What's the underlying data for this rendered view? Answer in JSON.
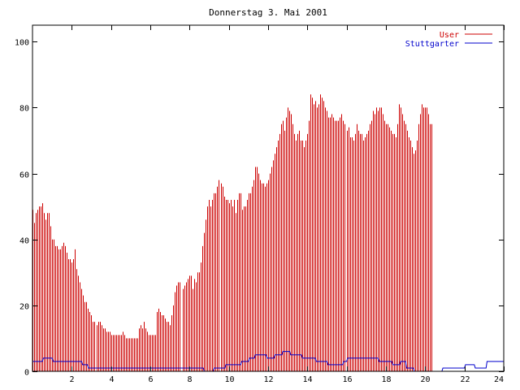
{
  "chart_data": {
    "type": "bar",
    "title": "Donnerstag 3. Mai 2001",
    "xlabel": "",
    "ylabel": "",
    "xlim": [
      0,
      24
    ],
    "ylim": [
      0,
      105
    ],
    "x_ticks": [
      2,
      4,
      6,
      8,
      10,
      12,
      14,
      16,
      18,
      20,
      22,
      24
    ],
    "y_ticks": [
      0,
      20,
      40,
      60,
      80,
      100
    ],
    "grid": false,
    "legend_position": "top-right",
    "sample_interval_hours": 0.0833,
    "series": [
      {
        "name": "User",
        "type": "bar",
        "color": "#cc0000",
        "x_start": 0,
        "x_step": 0.0833,
        "values": [
          49,
          45,
          48,
          49,
          50,
          50,
          51,
          48,
          46,
          48,
          48,
          44,
          40,
          40,
          38,
          38,
          37,
          37,
          38,
          39,
          38,
          36,
          34,
          34,
          33,
          34,
          37,
          31,
          29,
          27,
          25,
          23,
          21,
          21,
          19,
          18,
          17,
          15,
          15,
          14,
          15,
          15,
          14,
          13,
          13,
          12,
          12,
          12,
          11,
          11,
          11,
          11,
          11,
          11,
          11,
          12,
          11,
          10,
          10,
          10,
          10,
          10,
          10,
          10,
          10,
          13,
          14,
          13,
          15,
          13,
          12,
          11,
          11,
          11,
          11,
          11,
          18,
          19,
          18,
          17,
          17,
          16,
          15,
          15,
          14,
          17,
          20,
          24,
          26,
          27,
          27,
          0,
          25,
          26,
          27,
          28,
          29,
          29,
          25,
          28,
          27,
          30,
          30,
          33,
          38,
          42,
          46,
          50,
          52,
          50,
          52,
          54,
          54,
          56,
          58,
          57,
          56,
          53,
          52,
          52,
          51,
          52,
          50,
          52,
          48,
          52,
          54,
          54,
          49,
          50,
          50,
          52,
          54,
          54,
          56,
          58,
          62,
          62,
          60,
          58,
          57,
          57,
          56,
          57,
          58,
          60,
          62,
          64,
          66,
          68,
          70,
          72,
          75,
          76,
          73,
          77,
          80,
          79,
          78,
          75,
          72,
          70,
          72,
          73,
          70,
          70,
          68,
          70,
          72,
          76,
          84,
          83,
          81,
          82,
          80,
          81,
          84,
          83,
          82,
          80,
          79,
          77,
          77,
          78,
          77,
          76,
          76,
          76,
          77,
          78,
          76,
          75,
          73,
          74,
          71,
          71,
          70,
          72,
          75,
          73,
          72,
          72,
          70,
          71,
          72,
          73,
          75,
          76,
          79,
          78,
          80,
          79,
          80,
          80,
          78,
          76,
          75,
          75,
          74,
          73,
          72,
          72,
          71,
          75,
          81,
          80,
          78,
          76,
          75,
          73,
          71,
          70,
          68,
          66,
          67,
          70,
          75,
          78,
          81,
          80,
          80,
          80,
          78,
          75,
          75
        ]
      },
      {
        "name": "Stuttgarter",
        "type": "line",
        "color": "#0000cc",
        "segments": [
          [
            [
              0,
              3
            ],
            [
              0.5,
              3
            ],
            [
              0.55,
              4
            ],
            [
              1.0,
              4
            ],
            [
              1.05,
              3
            ],
            [
              2.5,
              3
            ],
            [
              2.55,
              2
            ],
            [
              2.8,
              2
            ],
            [
              2.85,
              1
            ],
            [
              8.7,
              1
            ],
            [
              8.75,
              0
            ],
            [
              9.2,
              0
            ],
            [
              9.25,
              1
            ],
            [
              9.8,
              1
            ],
            [
              9.85,
              2
            ],
            [
              10.6,
              2
            ],
            [
              10.65,
              3
            ],
            [
              11.0,
              3
            ],
            [
              11.05,
              4
            ],
            [
              11.3,
              4
            ],
            [
              11.35,
              5
            ],
            [
              11.9,
              5
            ],
            [
              11.95,
              4
            ],
            [
              12.3,
              4
            ],
            [
              12.35,
              5
            ],
            [
              12.7,
              5
            ],
            [
              12.75,
              6
            ],
            [
              13.1,
              6
            ],
            [
              13.15,
              5
            ],
            [
              13.7,
              5
            ],
            [
              13.75,
              4
            ],
            [
              14.4,
              4
            ],
            [
              14.45,
              3
            ],
            [
              15.0,
              3
            ],
            [
              15.05,
              2
            ],
            [
              15.8,
              2
            ],
            [
              15.85,
              3
            ],
            [
              16.0,
              3
            ],
            [
              16.05,
              4
            ],
            [
              17.6,
              4
            ],
            [
              17.65,
              3
            ],
            [
              18.3,
              3
            ],
            [
              18.35,
              2
            ],
            [
              18.7,
              2
            ],
            [
              18.75,
              3
            ],
            [
              19.0,
              3
            ],
            [
              19.05,
              1
            ],
            [
              19.4,
              1
            ],
            [
              19.45,
              0
            ],
            [
              20.85,
              0
            ],
            [
              20.9,
              1
            ],
            [
              22.0,
              1
            ],
            [
              22.05,
              2
            ],
            [
              22.5,
              2
            ],
            [
              22.55,
              1
            ],
            [
              23.1,
              1
            ],
            [
              23.15,
              3
            ],
            [
              24,
              3
            ]
          ]
        ]
      }
    ]
  }
}
